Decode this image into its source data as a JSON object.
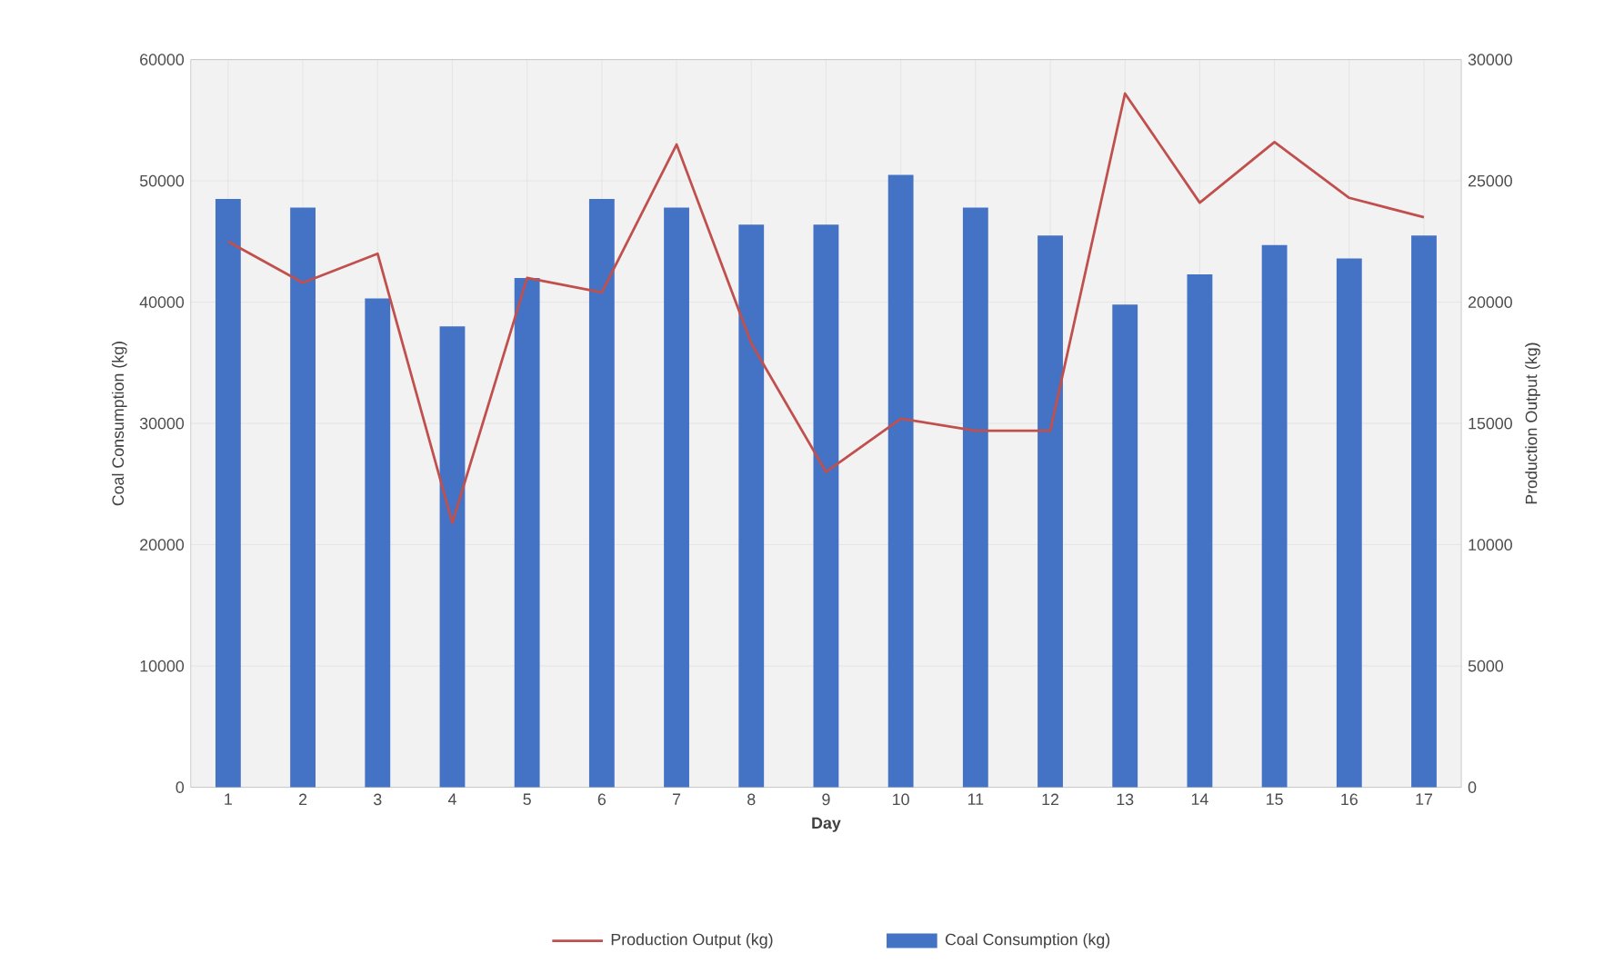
{
  "chart_data": {
    "type": "bar",
    "xlabel": "Day",
    "ylabel": "Coal Consumption (kg)",
    "y2label": "Production Output (kg)",
    "categories": [
      "1",
      "2",
      "3",
      "4",
      "5",
      "6",
      "7",
      "8",
      "9",
      "10",
      "11",
      "12",
      "13",
      "14",
      "15",
      "16",
      "17"
    ],
    "series": [
      {
        "name": "Production Output (kg)",
        "type": "line",
        "axis": "y2",
        "color": "#c0504d",
        "values": [
          22500,
          20800,
          22000,
          10900,
          21000,
          20400,
          26500,
          18300,
          13000,
          15200,
          14700,
          14700,
          28600,
          24100,
          26600,
          24300,
          23500
        ]
      },
      {
        "name": "Coal Consumption (kg)",
        "color": "#4472c4",
        "values": [
          48500,
          47800,
          40300,
          38000,
          42000,
          48500,
          47800,
          46400,
          46400,
          50500,
          47800,
          45500,
          39800,
          42300,
          44700,
          43600,
          45500
        ]
      }
    ],
    "ylim": [
      0,
      60000
    ],
    "yticks": [
      0,
      10000,
      20000,
      30000,
      40000,
      50000,
      60000
    ],
    "y2lim": [
      0,
      30000
    ],
    "y2ticks": [
      0,
      5000,
      10000,
      15000,
      20000,
      25000,
      30000
    ],
    "grid": true,
    "legend": "bottom"
  }
}
